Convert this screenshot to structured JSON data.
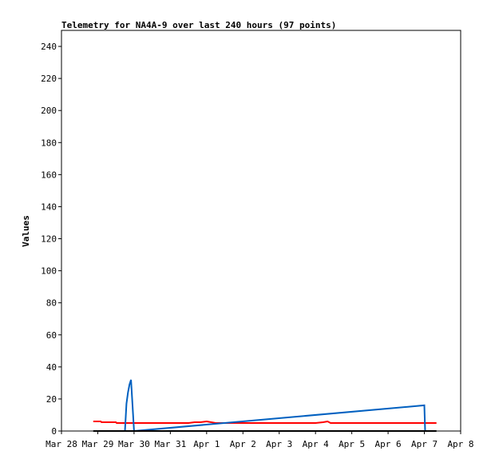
{
  "chart_data": {
    "type": "line",
    "title": "Telemetry for NA4A-9 over last 240 hours (97 points)",
    "xlabel": "",
    "ylabel": "Values",
    "ylim": [
      0,
      250
    ],
    "xlim": [
      "2024-03-28",
      "2024-04-08"
    ],
    "x_tick_labels": [
      "Mar 28",
      "Mar 29",
      "Mar 30",
      "Mar 31",
      "Apr 1",
      "Apr 2",
      "Apr 3",
      "Apr 4",
      "Apr 5",
      "Apr 6",
      "Apr 7",
      "Apr 8"
    ],
    "y_ticks": [
      0,
      20,
      40,
      60,
      80,
      100,
      120,
      140,
      160,
      180,
      200,
      220,
      240
    ],
    "grid": false,
    "series": [
      {
        "color": "#ff0000",
        "x": [
          "2024-03-28T21:00",
          "2024-03-29T02:00",
          "2024-03-29T02:30",
          "2024-03-29T12:00",
          "2024-03-29T12:30",
          "2024-03-29T18:00",
          "2024-03-29T21:00",
          "2024-03-30T12:00",
          "2024-03-31T00:00",
          "2024-03-31T12:00",
          "2024-03-31T16:00",
          "2024-03-31T20:00",
          "2024-04-01T00:00",
          "2024-04-01T06:00",
          "2024-04-02T00:00",
          "2024-04-03T00:00",
          "2024-04-04T00:00",
          "2024-04-04T05:00",
          "2024-04-04T08:00",
          "2024-04-04T10:00",
          "2024-04-05T00:00",
          "2024-04-06T00:00",
          "2024-04-07T00:00",
          "2024-04-07T08:00"
        ],
        "values": [
          6,
          6,
          5.5,
          5.5,
          5,
          5,
          5,
          5,
          5,
          5,
          5.5,
          5.5,
          6,
          5,
          5,
          5,
          5,
          5.5,
          6,
          5,
          5,
          5,
          5,
          5
        ]
      },
      {
        "color": "#0060c0",
        "x": [
          "2024-03-29T18:00",
          "2024-03-29T19:00",
          "2024-03-29T20:00",
          "2024-03-29T21:00",
          "2024-03-29T22:00",
          "2024-03-30T00:00",
          "2024-04-07T00:00",
          "2024-04-07T00:30"
        ],
        "values": [
          0,
          17,
          24,
          29,
          32,
          0,
          16,
          0
        ]
      },
      {
        "color": "#000000",
        "x": [
          "2024-03-28T21:00",
          "2024-04-07T08:00"
        ],
        "values": [
          0,
          0
        ]
      }
    ]
  }
}
